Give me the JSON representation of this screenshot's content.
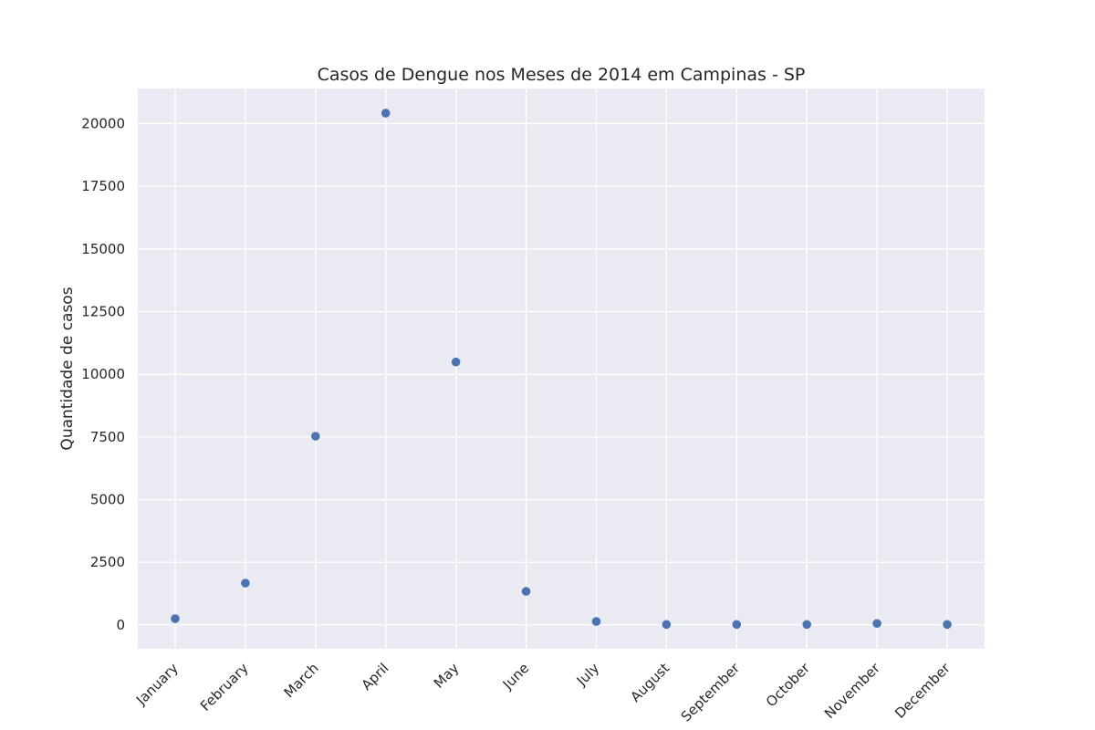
{
  "chart_data": {
    "type": "scatter",
    "title": "Casos de Dengue nos Meses de 2014 em Campinas - SP",
    "xlabel": "",
    "ylabel": "Quantidade de casos",
    "categories": [
      "January",
      "February",
      "March",
      "April",
      "May",
      "June",
      "July",
      "August",
      "September",
      "October",
      "November",
      "December"
    ],
    "values": [
      250,
      1670,
      7530,
      20420,
      10490,
      1340,
      140,
      20,
      20,
      20,
      60,
      20
    ],
    "y_ticks": [
      0,
      2500,
      5000,
      7500,
      10000,
      12500,
      15000,
      17500,
      20000
    ],
    "ylim": [
      -950,
      21400
    ],
    "grid": true,
    "colors": {
      "plot_background": "#eaeaf2",
      "grid": "#ffffff",
      "marker": "#4c72b0",
      "text": "#262626"
    }
  }
}
